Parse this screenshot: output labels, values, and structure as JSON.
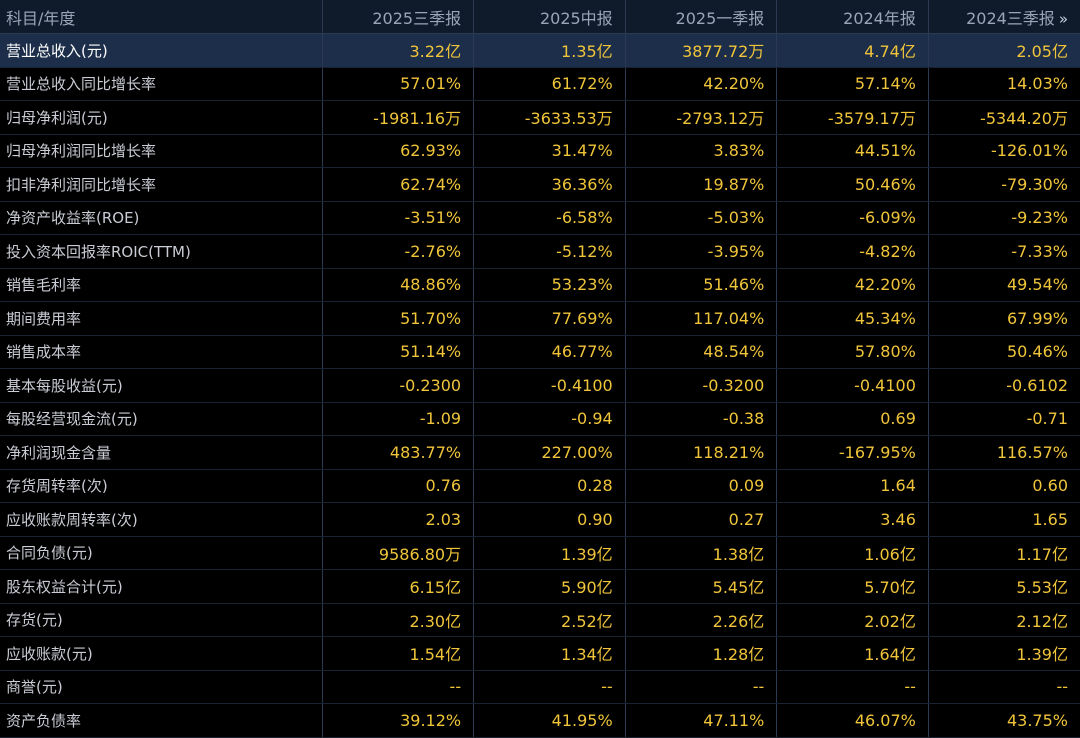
{
  "table": {
    "corner_label": "科目/年度",
    "more_icon": "»",
    "columns": [
      "2025三季报",
      "2025中报",
      "2025一季报",
      "2024年报",
      "2024三季报"
    ],
    "rows": [
      {
        "label": "营业总收入(元)",
        "values": [
          "3.22亿",
          "1.35亿",
          "3877.72万",
          "4.74亿",
          "2.05亿"
        ]
      },
      {
        "label": "营业总收入同比增长率",
        "values": [
          "57.01%",
          "61.72%",
          "42.20%",
          "57.14%",
          "14.03%"
        ]
      },
      {
        "label": "归母净利润(元)",
        "values": [
          "-1981.16万",
          "-3633.53万",
          "-2793.12万",
          "-3579.17万",
          "-5344.20万"
        ]
      },
      {
        "label": "归母净利润同比增长率",
        "values": [
          "62.93%",
          "31.47%",
          "3.83%",
          "44.51%",
          "-126.01%"
        ]
      },
      {
        "label": "扣非净利润同比增长率",
        "values": [
          "62.74%",
          "36.36%",
          "19.87%",
          "50.46%",
          "-79.30%"
        ]
      },
      {
        "label": "净资产收益率(ROE)",
        "values": [
          "-3.51%",
          "-6.58%",
          "-5.03%",
          "-6.09%",
          "-9.23%"
        ]
      },
      {
        "label": "投入资本回报率ROIC(TTM)",
        "values": [
          "-2.76%",
          "-5.12%",
          "-3.95%",
          "-4.82%",
          "-7.33%"
        ]
      },
      {
        "label": "销售毛利率",
        "values": [
          "48.86%",
          "53.23%",
          "51.46%",
          "42.20%",
          "49.54%"
        ]
      },
      {
        "label": "期间费用率",
        "values": [
          "51.70%",
          "77.69%",
          "117.04%",
          "45.34%",
          "67.99%"
        ]
      },
      {
        "label": "销售成本率",
        "values": [
          "51.14%",
          "46.77%",
          "48.54%",
          "57.80%",
          "50.46%"
        ]
      },
      {
        "label": "基本每股收益(元)",
        "values": [
          "-0.2300",
          "-0.4100",
          "-0.3200",
          "-0.4100",
          "-0.6102"
        ]
      },
      {
        "label": "每股经营现金流(元)",
        "values": [
          "-1.09",
          "-0.94",
          "-0.38",
          "0.69",
          "-0.71"
        ]
      },
      {
        "label": "净利润现金含量",
        "values": [
          "483.77%",
          "227.00%",
          "118.21%",
          "-167.95%",
          "116.57%"
        ]
      },
      {
        "label": "存货周转率(次)",
        "values": [
          "0.76",
          "0.28",
          "0.09",
          "1.64",
          "0.60"
        ]
      },
      {
        "label": "应收账款周转率(次)",
        "values": [
          "2.03",
          "0.90",
          "0.27",
          "3.46",
          "1.65"
        ]
      },
      {
        "label": "合同负债(元)",
        "values": [
          "9586.80万",
          "1.39亿",
          "1.38亿",
          "1.06亿",
          "1.17亿"
        ]
      },
      {
        "label": "股东权益合计(元)",
        "values": [
          "6.15亿",
          "5.90亿",
          "5.45亿",
          "5.70亿",
          "5.53亿"
        ]
      },
      {
        "label": "存货(元)",
        "values": [
          "2.30亿",
          "2.52亿",
          "2.26亿",
          "2.02亿",
          "2.12亿"
        ]
      },
      {
        "label": "应收账款(元)",
        "values": [
          "1.54亿",
          "1.34亿",
          "1.28亿",
          "1.64亿",
          "1.39亿"
        ]
      },
      {
        "label": "商誉(元)",
        "values": [
          "--",
          "--",
          "--",
          "--",
          "--"
        ]
      },
      {
        "label": "资产负债率",
        "values": [
          "39.12%",
          "41.95%",
          "47.11%",
          "46.07%",
          "43.75%"
        ]
      }
    ]
  }
}
